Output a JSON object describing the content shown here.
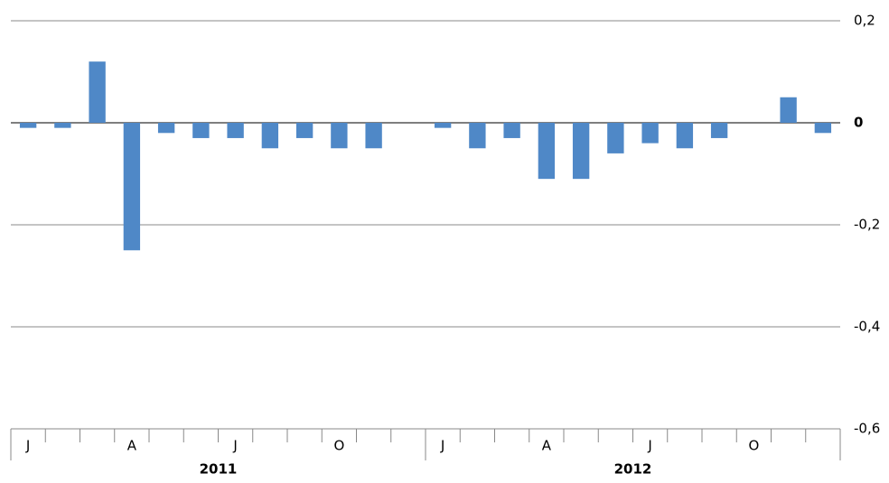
{
  "chart_data": {
    "type": "bar",
    "categories": [
      "J",
      null,
      null,
      "A",
      null,
      null,
      "J",
      null,
      null,
      "O",
      null,
      null,
      "J",
      null,
      null,
      "A",
      null,
      null,
      "J",
      null,
      null,
      "O",
      null,
      null
    ],
    "x_groups": [
      "2011",
      "2012"
    ],
    "values": [
      -0.01,
      -0.01,
      0.12,
      -0.25,
      -0.02,
      -0.03,
      -0.03,
      -0.05,
      -0.03,
      -0.05,
      -0.05,
      0,
      -0.01,
      -0.05,
      -0.03,
      -0.11,
      -0.11,
      -0.06,
      -0.04,
      -0.05,
      -0.03,
      0,
      0.05,
      -0.02
    ],
    "color": "#4f88c7",
    "ylim": [
      -0.6,
      0.2
    ],
    "yticks": [
      {
        "value": -0.6,
        "label": "-0,6"
      },
      {
        "value": -0.4,
        "label": "-0,4"
      },
      {
        "value": -0.2,
        "label": "-0,2"
      },
      0,
      {
        "value": 0.2,
        "label": "0,2"
      }
    ],
    "grid": true
  }
}
